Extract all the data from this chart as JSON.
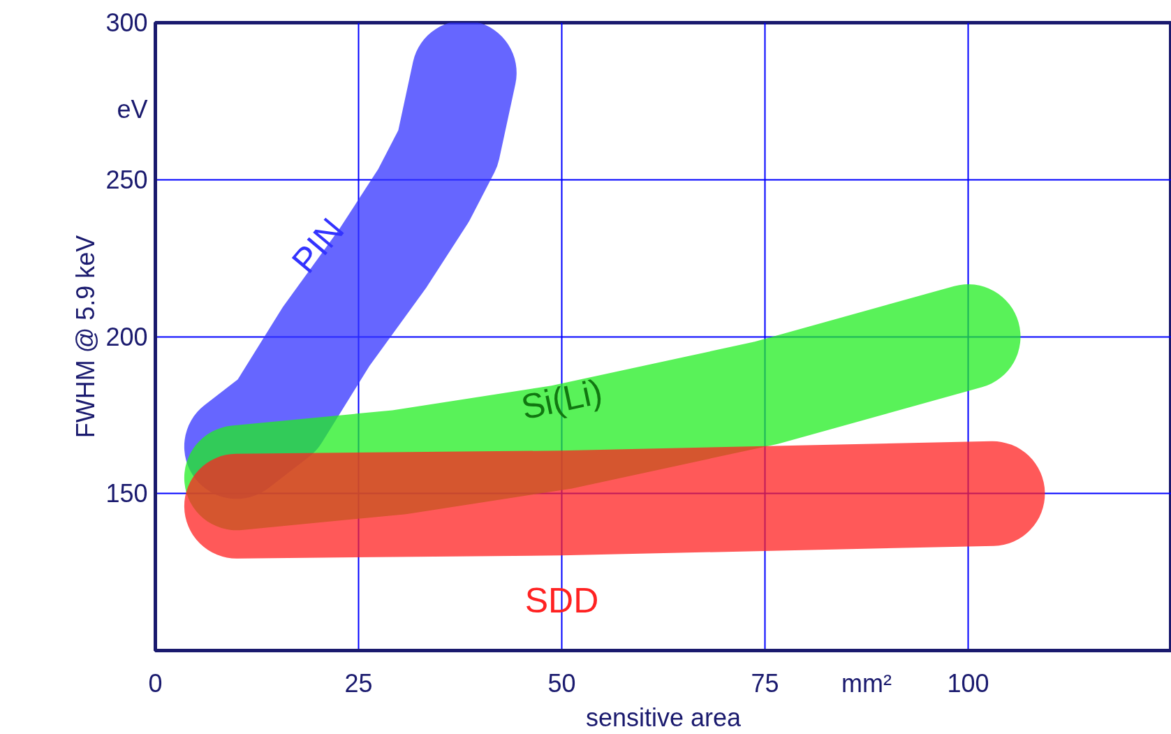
{
  "chart_data": {
    "type": "line",
    "xlabel": "sensitive area",
    "ylabel": "FWHM @ 5.9 keV",
    "annotations": [
      "eV",
      "mm²"
    ],
    "xlim": [
      0,
      125
    ],
    "ylim": [
      100,
      300
    ],
    "xticks": [
      0,
      25,
      50,
      75,
      100
    ],
    "yticks": [
      150,
      200,
      250,
      300
    ],
    "grid": true,
    "marker": "none",
    "line_style": "solid",
    "series": [
      {
        "name": "PIN",
        "color": "#3333ff",
        "x": [
          10,
          15,
          21,
          28,
          33,
          36,
          38
        ],
        "values": [
          165,
          175,
          200,
          225,
          245,
          260,
          284
        ]
      },
      {
        "name": "Si(Li)",
        "color": "#22ee22",
        "x": [
          10,
          30,
          50,
          75,
          100
        ],
        "values": [
          155,
          160,
          168,
          182,
          200
        ]
      },
      {
        "name": "SDD",
        "color": "#ff2222",
        "x": [
          10,
          50,
          103
        ],
        "values": [
          146,
          147,
          150
        ]
      }
    ]
  }
}
